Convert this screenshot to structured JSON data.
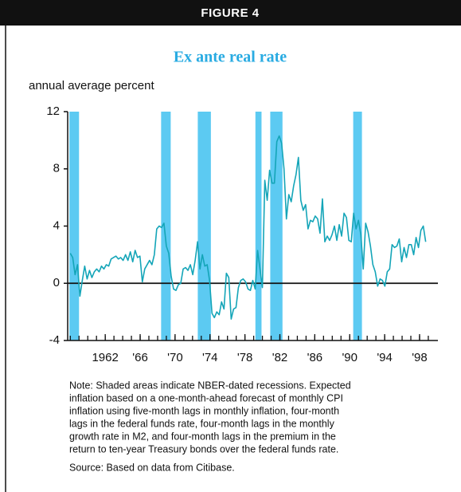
{
  "chart_data": {
    "type": "line",
    "header": "FIGURE 4",
    "title": "Ex ante real rate",
    "y_label": "annual average percent",
    "color": "#14a5b8",
    "recession_color": "#5ccaf2",
    "x": [
      1958,
      1958.275,
      1958.55,
      1958.825,
      1959.1,
      1959.375,
      1959.65,
      1959.925,
      1960.2,
      1960.475,
      1960.75,
      1961.025,
      1961.3,
      1961.575,
      1961.85,
      1962.125,
      1962.4,
      1962.675,
      1962.95,
      1963.225,
      1963.5,
      1963.775,
      1964.05,
      1964.325,
      1964.6,
      1964.875,
      1965.15,
      1965.425,
      1965.7,
      1965.975,
      1966.25,
      1966.525,
      1966.8,
      1967.075,
      1967.35,
      1967.625,
      1967.9,
      1968.175,
      1968.45,
      1968.725,
      1969,
      1969.275,
      1969.55,
      1969.825,
      1970.1,
      1970.375,
      1970.65,
      1970.925,
      1971.2,
      1971.475,
      1971.75,
      1972.025,
      1972.3,
      1972.575,
      1972.85,
      1973.125,
      1973.4,
      1973.675,
      1973.95,
      1974.225,
      1974.5,
      1974.775,
      1975.05,
      1975.325,
      1975.6,
      1975.875,
      1976.15,
      1976.425,
      1976.7,
      1976.975,
      1977.25,
      1977.525,
      1977.8,
      1978.075,
      1978.35,
      1978.625,
      1978.9,
      1979.175,
      1979.45,
      1979.725,
      1980,
      1980.275,
      1980.55,
      1980.825,
      1981.1,
      1981.375,
      1981.65,
      1981.925,
      1982.2,
      1982.475,
      1982.75,
      1983.025,
      1983.3,
      1983.575,
      1983.85,
      1984.125,
      1984.4,
      1984.675,
      1984.95,
      1985.225,
      1985.5,
      1985.775,
      1986.05,
      1986.325,
      1986.6,
      1986.875,
      1987.15,
      1987.425,
      1987.7,
      1987.975,
      1988.25,
      1988.525,
      1988.8,
      1989.075,
      1989.35,
      1989.625,
      1989.9,
      1990.175,
      1990.45,
      1990.725,
      1991,
      1991.275,
      1991.55,
      1991.825,
      1992.1,
      1992.375,
      1992.65,
      1992.925,
      1993.2,
      1993.475,
      1993.75,
      1994.025,
      1994.3,
      1994.575,
      1994.85,
      1995.125,
      1995.4,
      1995.675,
      1995.95,
      1996.225,
      1996.5,
      1996.775,
      1997.05,
      1997.325,
      1997.6,
      1997.875,
      1998.15,
      1998.425,
      1998.7
    ],
    "values": [
      2.1,
      1.8,
      0.6,
      1.3,
      -0.9,
      0.2,
      1.2,
      0.3,
      0.9,
      0.4,
      0.8,
      1.0,
      0.8,
      1.2,
      1.0,
      1.3,
      1.2,
      1.7,
      1.8,
      1.9,
      1.7,
      1.8,
      1.6,
      2.0,
      1.6,
      2.2,
      1.5,
      2.3,
      1.8,
      1.9,
      0.1,
      1.0,
      1.3,
      1.6,
      1.3,
      2.0,
      3.8,
      4.0,
      3.9,
      4.2,
      2.6,
      2.1,
      0.5,
      -0.4,
      -0.5,
      -0.1,
      0,
      1.0,
      1.1,
      0.9,
      1.3,
      0.6,
      1.6,
      2.9,
      1.0,
      2.0,
      1.2,
      1.3,
      0.2,
      -2.1,
      -2.4,
      -2.0,
      -2.2,
      -1.3,
      -1.8,
      0.7,
      0.4,
      -2.5,
      -1.8,
      -1.7,
      -0.3,
      0.2,
      0.3,
      0.1,
      -0.4,
      -0.5,
      0.2,
      -0.4,
      2.3,
      1.0,
      -0.3,
      7.2,
      5.8,
      7.9,
      7.0,
      7.0,
      9.9,
      10.3,
      9.8,
      8.0,
      4.5,
      6.2,
      5.7,
      6.8,
      7.6,
      8.8,
      5.8,
      5.1,
      5.5,
      3.8,
      4.4,
      4.3,
      4.7,
      4.5,
      3.5,
      5.9,
      2.9,
      3.3,
      3.0,
      3.4,
      4.0,
      3.0,
      4.1,
      3.3,
      4.9,
      4.6,
      3.0,
      2.9,
      4.9,
      3.8,
      4.4,
      3.4,
      1.0,
      4.2,
      3.6,
      2.6,
      1.3,
      0.8,
      -0.2,
      0.3,
      0.2,
      -0.2,
      0.8,
      1.0,
      2.7,
      2.5,
      2.6,
      3.1,
      1.5,
      2.5,
      1.8,
      2.7,
      2.7,
      2.0,
      3.2,
      2.5,
      3.7,
      4.0,
      2.9
    ],
    "recessions": [
      [
        1957.9,
        1959.0
      ],
      [
        1968.4,
        1969.5
      ],
      [
        1972.6,
        1974.1
      ],
      [
        1979.2,
        1979.9
      ],
      [
        1980.9,
        1982.3
      ],
      [
        1990.4,
        1991.4
      ]
    ],
    "xlim": [
      1957.7,
      2000.1
    ],
    "xticks": [
      1962,
      {
        "value": 1966,
        "label": "'66"
      },
      {
        "value": 1970,
        "label": "'70"
      },
      {
        "value": 1974,
        "label": "'74"
      },
      {
        "value": 1978,
        "label": "'78"
      },
      {
        "value": 1982,
        "label": "'82"
      },
      {
        "value": 1986,
        "label": "'86"
      },
      {
        "value": 1990,
        "label": "'90"
      },
      {
        "value": 1994,
        "label": "'94"
      },
      {
        "value": 1998,
        "label": "'98"
      }
    ],
    "xminor_ticks": [
      1958,
      1959,
      1960,
      1961,
      1962,
      1963,
      1964,
      1965,
      1966,
      1967,
      1968,
      1969,
      1970,
      1971,
      1972,
      1973,
      1974,
      1975,
      1976,
      1977,
      1978,
      1979,
      1980,
      1981,
      1982,
      1983,
      1984,
      1985,
      1986,
      1987,
      1988,
      1989,
      1990,
      1991,
      1992,
      1993,
      1994,
      1995,
      1996,
      1997,
      1998,
      1999
    ],
    "ylim": [
      -4,
      12
    ],
    "yticks": [
      12,
      8,
      4,
      0,
      -4
    ],
    "note_lines": [
      "Note: Shaded areas indicate NBER-dated recessions. Expected",
      "inflation based on a one-month-ahead forecast of monthly CPI",
      "inflation using five-month lags in monthly inflation, four-month",
      "lags in the federal funds rate, four-month lags in the monthly",
      "growth rate in M2, and four-month lags in the premium in the",
      "return to ten-year Treasury bonds over the federal funds rate."
    ],
    "source": "Source: Based on data from Citibase."
  }
}
